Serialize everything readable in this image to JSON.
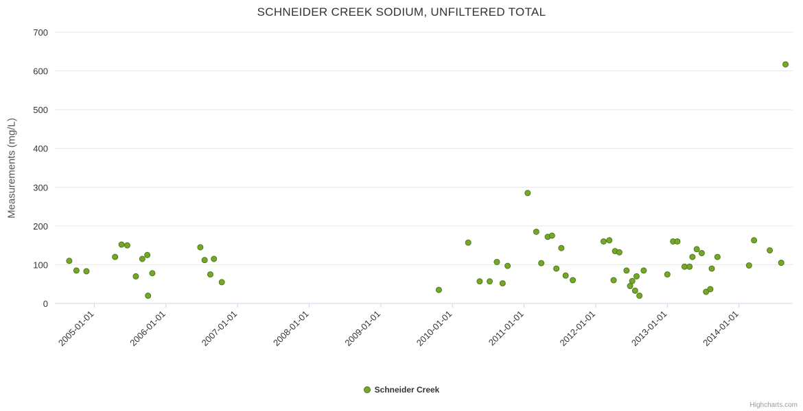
{
  "credits": "Highcharts.com",
  "colors": {
    "marker_fill": "#77a62c",
    "marker_stroke": "#4c7a14",
    "grid": "#e6e6e6",
    "axis_line": "#ccd6eb",
    "tick_text": "#333333",
    "title_text": "#333333",
    "y_title_text": "#555555",
    "credits_text": "#999999"
  },
  "chart_data": {
    "type": "scatter",
    "title": "SCHNEIDER CREEK SODIUM, UNFILTERED TOTAL",
    "xlabel": "",
    "ylabel": "Measurements (mg/L)",
    "ylim": [
      0,
      700
    ],
    "y_ticks": [
      0,
      100,
      200,
      300,
      400,
      500,
      600,
      700
    ],
    "xlim": [
      2004.45,
      2014.75
    ],
    "x_ticks": [
      {
        "v": 2005,
        "label": "2005-01-01"
      },
      {
        "v": 2006,
        "label": "2006-01-01"
      },
      {
        "v": 2007,
        "label": "2007-01-01"
      },
      {
        "v": 2008,
        "label": "2008-01-01"
      },
      {
        "v": 2009,
        "label": "2009-01-01"
      },
      {
        "v": 2010,
        "label": "2010-01-01"
      },
      {
        "v": 2011,
        "label": "2011-01-01"
      },
      {
        "v": 2012,
        "label": "2012-01-01"
      },
      {
        "v": 2013,
        "label": "2013-01-01"
      },
      {
        "v": 2014,
        "label": "2014-01-01"
      }
    ],
    "grid": "horizontal",
    "legend_position": "bottom",
    "series": [
      {
        "name": "Schneider Creek",
        "points": [
          [
            2004.65,
            110
          ],
          [
            2004.75,
            85
          ],
          [
            2004.89,
            83
          ],
          [
            2005.29,
            120
          ],
          [
            2005.38,
            152
          ],
          [
            2005.46,
            150
          ],
          [
            2005.58,
            70
          ],
          [
            2005.67,
            115
          ],
          [
            2005.74,
            125
          ],
          [
            2005.75,
            20
          ],
          [
            2005.81,
            78
          ],
          [
            2006.48,
            145
          ],
          [
            2006.54,
            112
          ],
          [
            2006.62,
            75
          ],
          [
            2006.67,
            115
          ],
          [
            2006.78,
            55
          ],
          [
            2009.81,
            35
          ],
          [
            2010.22,
            157
          ],
          [
            2010.38,
            57
          ],
          [
            2010.52,
            57
          ],
          [
            2010.62,
            107
          ],
          [
            2010.7,
            52
          ],
          [
            2010.77,
            97
          ],
          [
            2011.05,
            285
          ],
          [
            2011.17,
            185
          ],
          [
            2011.24,
            104
          ],
          [
            2011.33,
            172
          ],
          [
            2011.39,
            175
          ],
          [
            2011.45,
            90
          ],
          [
            2011.52,
            143
          ],
          [
            2011.58,
            72
          ],
          [
            2011.68,
            60
          ],
          [
            2012.11,
            160
          ],
          [
            2012.19,
            163
          ],
          [
            2012.25,
            60
          ],
          [
            2012.27,
            135
          ],
          [
            2012.33,
            132
          ],
          [
            2012.43,
            85
          ],
          [
            2012.48,
            45
          ],
          [
            2012.51,
            58
          ],
          [
            2012.55,
            33
          ],
          [
            2012.57,
            70
          ],
          [
            2012.61,
            20
          ],
          [
            2012.67,
            85
          ],
          [
            2013.0,
            75
          ],
          [
            2013.08,
            160
          ],
          [
            2013.14,
            160
          ],
          [
            2013.24,
            95
          ],
          [
            2013.31,
            95
          ],
          [
            2013.35,
            120
          ],
          [
            2013.41,
            140
          ],
          [
            2013.48,
            130
          ],
          [
            2013.54,
            30
          ],
          [
            2013.6,
            37
          ],
          [
            2013.62,
            90
          ],
          [
            2013.7,
            120
          ],
          [
            2014.14,
            98
          ],
          [
            2014.21,
            163
          ],
          [
            2014.43,
            137
          ],
          [
            2014.59,
            105
          ],
          [
            2014.65,
            617
          ]
        ]
      }
    ]
  }
}
